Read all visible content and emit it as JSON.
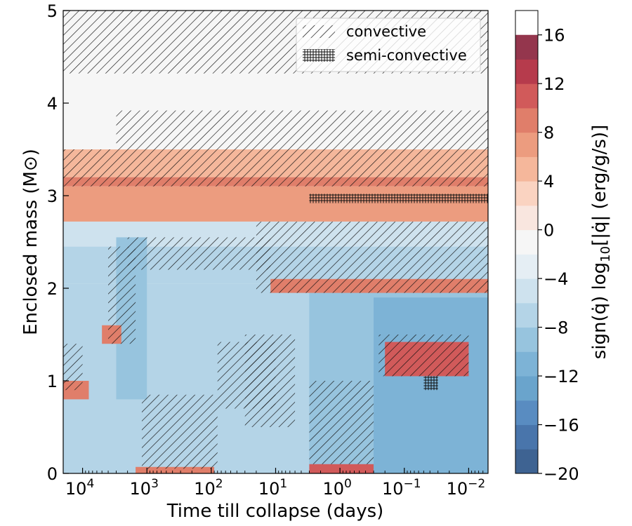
{
  "chart_data": {
    "type": "heatmap",
    "title": "",
    "xlabel": "Time till collapse (days)",
    "ylabel": "Enclosed mass (M⊙)",
    "x_scale": "log, reversed",
    "xlim": [
      20000,
      0.005
    ],
    "ylim": [
      0,
      5
    ],
    "x_ticks": [
      {
        "value": 10000,
        "base": "10",
        "exp": "4"
      },
      {
        "value": 1000,
        "base": "10",
        "exp": "3"
      },
      {
        "value": 100,
        "base": "10",
        "exp": "2"
      },
      {
        "value": 10,
        "base": "10",
        "exp": "1"
      },
      {
        "value": 1,
        "base": "10",
        "exp": "0"
      },
      {
        "value": 0.1,
        "base": "10",
        "exp": "−1"
      },
      {
        "value": 0.01,
        "base": "10",
        "exp": "−2"
      }
    ],
    "y_ticks": [
      "0",
      "1",
      "2",
      "3",
      "4",
      "5"
    ],
    "legend": {
      "placement": "top-right",
      "entries": [
        {
          "label": "convective",
          "hatch": "diagonal"
        },
        {
          "label": "semi-convective",
          "hatch": "cross"
        }
      ]
    },
    "colorbar": {
      "label_parts": [
        "sign(",
        "q̇",
        ") log",
        "10",
        "[|",
        "q̇",
        "| (erg/g/s)]"
      ],
      "range": [
        -20,
        18
      ],
      "step": 2,
      "ticks": [
        "−20",
        "−16",
        "−12",
        "−8",
        "−4",
        "0",
        "4",
        "8",
        "12",
        "16"
      ],
      "colors": [
        "#3e6392",
        "#4975ab",
        "#598cc1",
        "#6aa4cc",
        "#7db3d6",
        "#97c4de",
        "#b4d4e7",
        "#cee2ee",
        "#e5eef4",
        "#f6f6f6",
        "#f9e6df",
        "#fad3c1",
        "#f5b79b",
        "#ec9c7f",
        "#e07e6a",
        "#d15a5a",
        "#b63b4c",
        "#94364d"
      ]
    },
    "regions": [
      {
        "kind": "level",
        "value": -1.5,
        "x": [
          20000,
          0.005
        ],
        "y": [
          4.32,
          5.0
        ]
      },
      {
        "kind": "level",
        "value": -1.5,
        "x": [
          20000,
          0.005
        ],
        "y": [
          3.5,
          4.32
        ]
      },
      {
        "kind": "level",
        "value": 5,
        "x": [
          20000,
          0.005
        ],
        "y": [
          3.2,
          3.5
        ]
      },
      {
        "kind": "level",
        "value": 8,
        "x": [
          20000,
          0.005
        ],
        "y": [
          3.1,
          3.2
        ]
      },
      {
        "kind": "level",
        "value": 6,
        "x": [
          20000,
          0.005
        ],
        "y": [
          2.72,
          3.1
        ]
      },
      {
        "kind": "level",
        "value": -4.5,
        "x": [
          20000,
          0.005
        ],
        "y": [
          2.45,
          2.72
        ]
      },
      {
        "kind": "level",
        "value": -6.5,
        "x": [
          20000,
          0.005
        ],
        "y": [
          2.05,
          2.45
        ]
      },
      {
        "kind": "level",
        "value": -7.5,
        "x": [
          20000,
          0.005
        ],
        "y": [
          0,
          2.05
        ]
      },
      {
        "kind": "level",
        "value": -9.5,
        "x": [
          3000,
          1000
        ],
        "y": [
          0.8,
          2.55
        ]
      },
      {
        "kind": "level",
        "value": -9.5,
        "x": [
          3.0,
          0.005
        ],
        "y": [
          0,
          1.95
        ]
      },
      {
        "kind": "level",
        "value": -10.5,
        "x": [
          0.3,
          0.005
        ],
        "y": [
          0,
          1.9
        ]
      },
      {
        "kind": "level",
        "value": 9,
        "x": [
          12,
          0.005
        ],
        "y": [
          1.95,
          2.1
        ]
      },
      {
        "kind": "level",
        "value": 11,
        "x": [
          0.2,
          0.01
        ],
        "y": [
          1.05,
          1.42
        ]
      },
      {
        "kind": "level",
        "value": 10,
        "x": [
          3.0,
          0.3
        ],
        "y": [
          0,
          0.1
        ]
      },
      {
        "kind": "level",
        "value": 9,
        "x": [
          1500,
          90
        ],
        "y": [
          0,
          0.07
        ]
      },
      {
        "kind": "level",
        "value": 9,
        "x": [
          5000,
          2500
        ],
        "y": [
          1.4,
          1.6
        ]
      },
      {
        "kind": "level",
        "value": 9,
        "x": [
          20000,
          8000
        ],
        "y": [
          0.8,
          1.0
        ]
      }
    ],
    "convective_zones": [
      {
        "x": [
          20000,
          0.005
        ],
        "y": [
          4.32,
          5.0
        ]
      },
      {
        "x": [
          20000,
          0.005
        ],
        "y": [
          3.1,
          3.5
        ]
      },
      {
        "x": [
          3000,
          0.005
        ],
        "y": [
          3.5,
          3.92
        ]
      },
      {
        "x": [
          2000,
          12
        ],
        "y": [
          2.2,
          2.55
        ]
      },
      {
        "x": [
          4000,
          1500
        ],
        "y": [
          1.4,
          2.45
        ]
      },
      {
        "x": [
          20,
          0.005
        ],
        "y": [
          1.95,
          2.72
        ]
      },
      {
        "x": [
          3.0,
          0.3
        ],
        "y": [
          0.1,
          1.0
        ]
      },
      {
        "x": [
          1200,
          80
        ],
        "y": [
          0.05,
          0.85
        ]
      },
      {
        "x": [
          80,
          10
        ],
        "y": [
          0.7,
          1.42
        ]
      },
      {
        "x": [
          30,
          5
        ],
        "y": [
          0.5,
          1.5
        ]
      },
      {
        "x": [
          0.25,
          0.01
        ],
        "y": [
          1.05,
          1.5
        ]
      },
      {
        "x": [
          20000,
          10000
        ],
        "y": [
          0.9,
          1.4
        ]
      }
    ],
    "semi_convective_zones": [
      {
        "x": [
          3.0,
          0.005
        ],
        "y": [
          2.92,
          3.02
        ]
      },
      {
        "x": [
          0.05,
          0.03
        ],
        "y": [
          0.9,
          1.05
        ]
      }
    ]
  }
}
